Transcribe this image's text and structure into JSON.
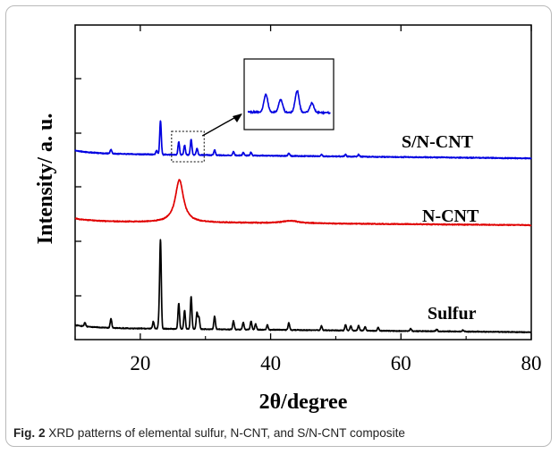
{
  "caption": {
    "label": "Fig. 2",
    "text": " XRD patterns of elemental sulfur, N-CNT, and S/N-CNT composite"
  },
  "chart_data": {
    "type": "line",
    "title": "",
    "xlabel": "2θ/degree",
    "ylabel": "Intensity/ a. u.",
    "xlim": [
      10,
      80
    ],
    "x_ticks": [
      "20",
      "40",
      "60",
      "80"
    ],
    "x_tick_values": [
      20,
      40,
      60,
      80
    ],
    "grid": false,
    "legend": "none",
    "series": [
      {
        "name": "Sulfur",
        "color": "#000000",
        "baseline": 1.0,
        "end_level": 0.1,
        "broad_peaks": [],
        "peaks": [
          [
            11.5,
            0.8
          ],
          [
            15.5,
            2.0
          ],
          [
            22.0,
            1.5
          ],
          [
            22.9,
            2.3
          ],
          [
            23.1,
            18.5
          ],
          [
            25.9,
            5.5
          ],
          [
            26.8,
            4.0
          ],
          [
            27.8,
            7.0
          ],
          [
            28.7,
            3.5
          ],
          [
            29.0,
            2.5
          ],
          [
            31.4,
            2.8
          ],
          [
            34.3,
            1.8
          ],
          [
            35.8,
            1.5
          ],
          [
            37.0,
            1.8
          ],
          [
            37.7,
            1.2
          ],
          [
            39.5,
            1.0
          ],
          [
            42.8,
            1.5
          ],
          [
            47.8,
            0.9
          ],
          [
            51.5,
            1.2
          ],
          [
            52.3,
            1.0
          ],
          [
            53.5,
            1.1
          ],
          [
            54.5,
            0.8
          ],
          [
            56.5,
            0.7
          ],
          [
            61.5,
            0.5
          ],
          [
            65.5,
            0.4
          ],
          [
            69.5,
            0.3
          ]
        ]
      },
      {
        "name": "N-CNT",
        "color": "#e00000",
        "baseline": 1.0,
        "end_level": 0.3,
        "broad_peaks": [
          [
            26.0,
            8.5,
            0.75
          ],
          [
            43.0,
            0.5,
            1.5
          ]
        ],
        "peaks": []
      },
      {
        "name": "S/N-CNT",
        "color": "#0000e0",
        "baseline": 1.0,
        "end_level": 0.1,
        "broad_peaks": [],
        "peaks": [
          [
            15.5,
            0.8
          ],
          [
            22.5,
            0.8
          ],
          [
            23.1,
            6.5
          ],
          [
            25.9,
            2.5
          ],
          [
            26.8,
            1.8
          ],
          [
            27.8,
            3.0
          ],
          [
            28.7,
            1.3
          ],
          [
            31.4,
            1.0
          ],
          [
            34.3,
            0.7
          ],
          [
            35.8,
            0.6
          ],
          [
            37.0,
            0.6
          ],
          [
            42.8,
            0.5
          ],
          [
            47.8,
            0.3
          ],
          [
            51.5,
            0.4
          ],
          [
            53.5,
            0.4
          ]
        ]
      }
    ],
    "inset": {
      "series": "S/N-CNT",
      "x_range": [
        24.8,
        29.8
      ],
      "color": "#0000e0"
    }
  }
}
